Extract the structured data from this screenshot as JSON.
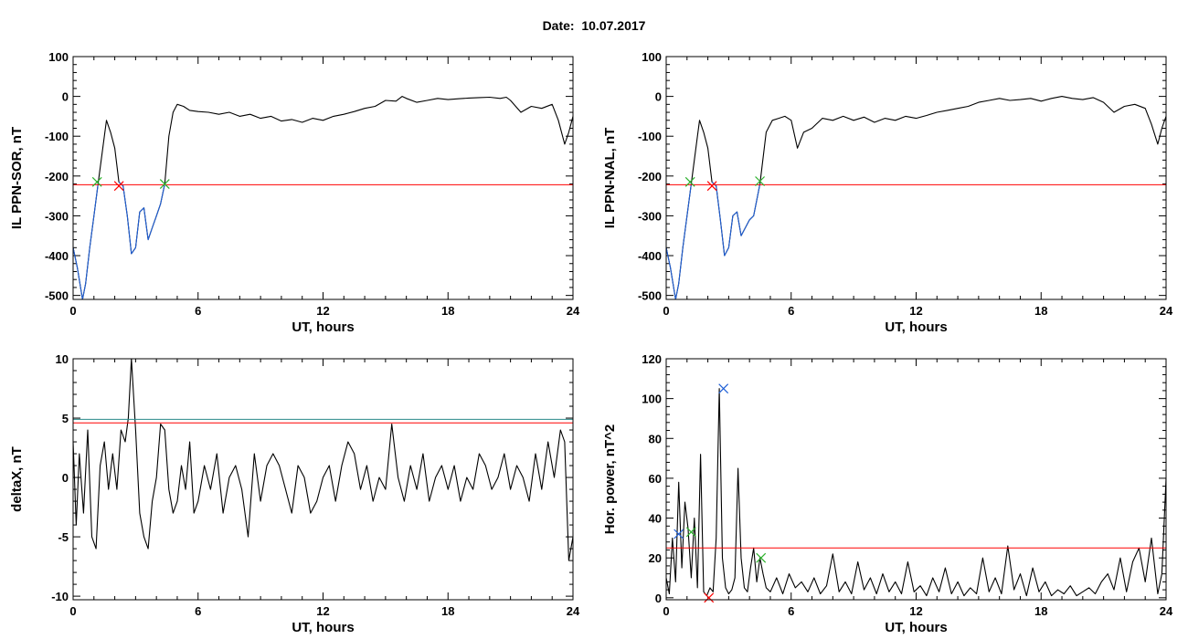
{
  "header": {
    "date_label": "Date:",
    "date_value": "10.07.2017"
  },
  "colors": {
    "black": "#000000",
    "blue": "#1f5fd6",
    "red": "#ff0000",
    "green": "#2bb02b",
    "teal": "#2a8a8a"
  },
  "chart_data": [
    {
      "id": "p1",
      "type": "line",
      "xlabel": "UT, hours",
      "ylabel": "IL PPN-SOR, nT",
      "xlim": [
        0,
        24
      ],
      "ylim": [
        -510,
        100
      ],
      "xticks": [
        0,
        6,
        12,
        18,
        24
      ],
      "yticks": [
        100,
        0,
        -100,
        -200,
        -300,
        -400,
        -500
      ],
      "ytick_labels": [
        "100",
        "0",
        "-100",
        "-200",
        "-300",
        "-400",
        "-500"
      ],
      "series": [
        {
          "color": "#000000",
          "x": [
            0,
            0.2,
            0.45,
            0.6,
            0.8,
            1.0,
            1.2,
            1.5,
            1.6,
            1.8,
            2.0,
            2.2,
            2.4,
            2.6,
            2.8,
            3.0,
            3.2,
            3.4,
            3.6,
            3.8,
            4.0,
            4.2,
            4.4,
            4.6,
            4.8,
            5.0,
            5.3,
            5.6,
            6.0,
            6.5,
            7.0,
            7.5,
            8.0,
            8.5,
            9.0,
            9.5,
            10.0,
            10.5,
            11.0,
            11.5,
            12.0,
            12.5,
            13.0,
            13.5,
            14.0,
            14.5,
            15.0,
            15.5,
            15.8,
            16.0,
            16.5,
            17.0,
            17.5,
            18.0,
            18.5,
            19.0,
            19.5,
            20.0,
            20.5,
            20.8,
            21.0,
            21.5,
            22.0,
            22.5,
            23.0,
            23.3,
            23.6,
            23.8,
            24.0
          ],
          "y": [
            -380,
            -430,
            -510,
            -470,
            -380,
            -300,
            -220,
            -100,
            -60,
            -90,
            -130,
            -215,
            -225,
            -300,
            -395,
            -380,
            -290,
            -280,
            -360,
            -330,
            -300,
            -270,
            -220,
            -100,
            -40,
            -20,
            -25,
            -35,
            -38,
            -40,
            -45,
            -40,
            -50,
            -45,
            -55,
            -50,
            -62,
            -58,
            -65,
            -55,
            -60,
            -50,
            -45,
            -38,
            -30,
            -25,
            -10,
            -12,
            0,
            -5,
            -15,
            -10,
            -5,
            -8,
            -6,
            -4,
            -3,
            -2,
            -5,
            -2,
            -10,
            -40,
            -25,
            -30,
            -20,
            -60,
            -120,
            -90,
            -50
          ]
        },
        {
          "color": "#1f5fd6",
          "x": [
            0,
            0.2,
            0.45,
            0.6,
            0.8,
            1.0,
            1.2,
            1.5,
            1.6,
            1.8,
            2.0,
            2.2,
            2.4,
            2.6,
            2.8,
            3.0,
            3.2,
            3.4,
            3.6,
            3.8,
            4.0,
            4.2,
            4.4
          ],
          "y": [
            -380,
            -430,
            -510,
            -470,
            -380,
            -300,
            -220,
            -100,
            -60,
            -90,
            -130,
            -215,
            -225,
            -300,
            -395,
            -380,
            -290,
            -280,
            -360,
            -330,
            -300,
            -270,
            -220
          ],
          "mask_below": -220
        }
      ],
      "hlines": [
        {
          "y": -222,
          "color": "#ff0000"
        }
      ],
      "markers": [
        {
          "x": 1.15,
          "y": -215,
          "color": "#2bb02b",
          "symbol": "x"
        },
        {
          "x": 2.2,
          "y": -225,
          "color": "#ff0000",
          "symbol": "x"
        },
        {
          "x": 4.4,
          "y": -220,
          "color": "#2bb02b",
          "symbol": "x"
        }
      ]
    },
    {
      "id": "p2",
      "type": "line",
      "xlabel": "UT, hours",
      "ylabel": "IL PPN-NAL, nT",
      "xlim": [
        0,
        24
      ],
      "ylim": [
        -510,
        100
      ],
      "xticks": [
        0,
        6,
        12,
        18,
        24
      ],
      "yticks": [
        100,
        0,
        -100,
        -200,
        -300,
        -400,
        -500
      ],
      "ytick_labels": [
        "100",
        "0",
        "-100",
        "-200",
        "-300",
        "-400",
        "-500"
      ],
      "series": [
        {
          "color": "#000000",
          "x": [
            0,
            0.2,
            0.45,
            0.6,
            0.8,
            1.0,
            1.2,
            1.5,
            1.6,
            1.8,
            2.0,
            2.2,
            2.4,
            2.6,
            2.8,
            3.0,
            3.2,
            3.4,
            3.6,
            3.8,
            4.0,
            4.2,
            4.5,
            4.8,
            5.1,
            5.4,
            5.7,
            6.0,
            6.3,
            6.6,
            7.0,
            7.5,
            8.0,
            8.5,
            9.0,
            9.5,
            10.0,
            10.5,
            11.0,
            11.5,
            12.0,
            12.5,
            13.0,
            13.5,
            14.0,
            14.5,
            15.0,
            15.5,
            16.0,
            16.5,
            17.0,
            17.5,
            18.0,
            18.5,
            19.0,
            19.5,
            20.0,
            20.5,
            21.0,
            21.5,
            22.0,
            22.5,
            23.0,
            23.3,
            23.6,
            23.8,
            24.0
          ],
          "y": [
            -380,
            -430,
            -510,
            -470,
            -380,
            -300,
            -220,
            -100,
            -60,
            -90,
            -130,
            -215,
            -225,
            -310,
            -400,
            -380,
            -300,
            -290,
            -350,
            -330,
            -310,
            -300,
            -220,
            -90,
            -60,
            -55,
            -50,
            -60,
            -130,
            -90,
            -80,
            -55,
            -60,
            -50,
            -60,
            -52,
            -65,
            -55,
            -60,
            -50,
            -55,
            -48,
            -40,
            -35,
            -30,
            -25,
            -15,
            -10,
            -5,
            -10,
            -8,
            -5,
            -12,
            -5,
            0,
            -5,
            -8,
            -3,
            -15,
            -40,
            -25,
            -20,
            -30,
            -70,
            -120,
            -80,
            -50
          ]
        },
        {
          "color": "#1f5fd6",
          "x": [
            0,
            0.2,
            0.45,
            0.6,
            0.8,
            1.0,
            1.2,
            1.5,
            1.6,
            1.8,
            2.0,
            2.2,
            2.4,
            2.6,
            2.8,
            3.0,
            3.2,
            3.4,
            3.6,
            3.8,
            4.0,
            4.2,
            4.5
          ],
          "y": [
            -380,
            -430,
            -510,
            -470,
            -380,
            -300,
            -220,
            -100,
            -60,
            -90,
            -130,
            -215,
            -225,
            -310,
            -400,
            -380,
            -300,
            -290,
            -350,
            -330,
            -310,
            -300,
            -220
          ],
          "mask_below": -220
        }
      ],
      "hlines": [
        {
          "y": -222,
          "color": "#ff0000"
        }
      ],
      "markers": [
        {
          "x": 1.15,
          "y": -215,
          "color": "#2bb02b",
          "symbol": "x"
        },
        {
          "x": 2.2,
          "y": -225,
          "color": "#ff0000",
          "symbol": "x"
        },
        {
          "x": 4.5,
          "y": -213,
          "color": "#2bb02b",
          "symbol": "x"
        }
      ]
    },
    {
      "id": "p3",
      "type": "line",
      "xlabel": "UT, hours",
      "ylabel": "deltaX, nT",
      "xlim": [
        0,
        24
      ],
      "ylim": [
        -10.3,
        10
      ],
      "xticks": [
        0,
        6,
        12,
        18,
        24
      ],
      "yticks": [
        10,
        5,
        0,
        -5,
        -10
      ],
      "ytick_labels": [
        "10",
        "5",
        "0",
        "-5",
        "-10"
      ],
      "series": [
        {
          "color": "#000000",
          "x": [
            0,
            0.15,
            0.3,
            0.5,
            0.7,
            0.9,
            1.1,
            1.3,
            1.5,
            1.7,
            1.9,
            2.1,
            2.3,
            2.5,
            2.65,
            2.8,
            3.0,
            3.2,
            3.4,
            3.6,
            3.8,
            4.0,
            4.2,
            4.4,
            4.6,
            4.8,
            5.0,
            5.2,
            5.4,
            5.6,
            5.8,
            6.0,
            6.3,
            6.6,
            6.9,
            7.2,
            7.5,
            7.8,
            8.1,
            8.4,
            8.7,
            9.0,
            9.3,
            9.6,
            9.9,
            10.2,
            10.5,
            10.8,
            11.1,
            11.4,
            11.7,
            12.0,
            12.3,
            12.6,
            12.9,
            13.2,
            13.5,
            13.8,
            14.1,
            14.4,
            14.7,
            15.0,
            15.3,
            15.6,
            15.9,
            16.2,
            16.5,
            16.8,
            17.1,
            17.4,
            17.7,
            18.0,
            18.3,
            18.6,
            18.9,
            19.2,
            19.5,
            19.8,
            20.1,
            20.4,
            20.7,
            21.0,
            21.3,
            21.6,
            21.9,
            22.2,
            22.5,
            22.8,
            23.1,
            23.4,
            23.6,
            23.8,
            24.0
          ],
          "y": [
            3,
            -4,
            2,
            -3,
            4,
            -5,
            -6,
            1,
            3,
            -1,
            2,
            -1,
            4,
            3,
            5,
            10,
            4,
            -3,
            -5,
            -6,
            -2,
            0,
            4.5,
            4,
            -1,
            -3,
            -2,
            1,
            -1,
            3,
            -3,
            -2,
            1,
            -1,
            2,
            -3,
            0,
            1,
            -1,
            -5,
            2,
            -2,
            1,
            2,
            1,
            -1,
            -3,
            1,
            0,
            -3,
            -2,
            0,
            1,
            -2,
            1,
            3,
            2,
            -1,
            1,
            -2,
            0,
            -1,
            4.5,
            0,
            -2,
            1,
            -1,
            2,
            -2,
            0,
            1,
            -1,
            1,
            -2,
            0,
            -1,
            2,
            1,
            -1,
            0,
            2,
            -1,
            1,
            0,
            -2,
            2,
            -1,
            3,
            0,
            4,
            3,
            -7,
            -5
          ]
        }
      ],
      "hlines": [
        {
          "y": 4.9,
          "color": "#2a8a8a"
        },
        {
          "y": 4.6,
          "color": "#ff0000"
        }
      ],
      "markers": []
    },
    {
      "id": "p4",
      "type": "line",
      "xlabel": "UT, hours",
      "ylabel": "Hor. power, nT^2",
      "xlim": [
        0,
        24
      ],
      "ylim": [
        -1,
        120
      ],
      "xticks": [
        0,
        6,
        12,
        18,
        24
      ],
      "yticks": [
        120,
        100,
        80,
        60,
        40,
        20,
        0
      ],
      "ytick_labels": [
        "120",
        "100",
        "80",
        "60",
        "40",
        "20",
        "0"
      ],
      "series": [
        {
          "color": "#000000",
          "x": [
            0,
            0.15,
            0.3,
            0.45,
            0.6,
            0.75,
            0.9,
            1.05,
            1.2,
            1.35,
            1.5,
            1.65,
            1.8,
            1.95,
            2.1,
            2.25,
            2.4,
            2.55,
            2.7,
            2.85,
            3.0,
            3.15,
            3.3,
            3.45,
            3.6,
            3.75,
            3.9,
            4.05,
            4.2,
            4.35,
            4.5,
            4.65,
            4.8,
            5.0,
            5.3,
            5.6,
            5.9,
            6.2,
            6.5,
            6.8,
            7.1,
            7.4,
            7.7,
            8.0,
            8.3,
            8.6,
            8.9,
            9.2,
            9.5,
            9.8,
            10.1,
            10.4,
            10.7,
            11.0,
            11.3,
            11.6,
            11.9,
            12.2,
            12.5,
            12.8,
            13.1,
            13.4,
            13.7,
            14.0,
            14.3,
            14.6,
            14.9,
            15.2,
            15.5,
            15.8,
            16.1,
            16.4,
            16.7,
            17.0,
            17.3,
            17.6,
            17.9,
            18.2,
            18.5,
            18.8,
            19.1,
            19.4,
            19.7,
            20.0,
            20.3,
            20.6,
            20.9,
            21.2,
            21.5,
            21.8,
            22.1,
            22.4,
            22.7,
            23.0,
            23.3,
            23.6,
            23.8,
            24.0
          ],
          "y": [
            10,
            2,
            30,
            8,
            58,
            15,
            48,
            35,
            10,
            40,
            5,
            72,
            3,
            1,
            5,
            3,
            30,
            105,
            20,
            5,
            2,
            4,
            10,
            65,
            20,
            5,
            3,
            15,
            25,
            8,
            20,
            12,
            5,
            3,
            10,
            2,
            12,
            5,
            8,
            3,
            10,
            2,
            6,
            22,
            3,
            8,
            2,
            18,
            4,
            10,
            2,
            12,
            3,
            8,
            2,
            18,
            3,
            6,
            1,
            10,
            3,
            15,
            2,
            8,
            1,
            5,
            2,
            20,
            3,
            10,
            2,
            26,
            4,
            12,
            1,
            15,
            3,
            8,
            1,
            4,
            2,
            6,
            1,
            3,
            5,
            2,
            8,
            12,
            4,
            20,
            3,
            18,
            25,
            8,
            30,
            2,
            12,
            60
          ]
        }
      ],
      "hlines": [
        {
          "y": 25,
          "color": "#ff0000"
        }
      ],
      "markers": [
        {
          "x": 0.6,
          "y": 32,
          "color": "#1f5fd6",
          "symbol": "x"
        },
        {
          "x": 1.2,
          "y": 33,
          "color": "#2bb02b",
          "symbol": "x"
        },
        {
          "x": 2.05,
          "y": 0,
          "color": "#ff0000",
          "symbol": "x"
        },
        {
          "x": 2.75,
          "y": 105,
          "color": "#1f5fd6",
          "symbol": "x"
        },
        {
          "x": 4.55,
          "y": 20,
          "color": "#2bb02b",
          "symbol": "x"
        }
      ]
    }
  ]
}
